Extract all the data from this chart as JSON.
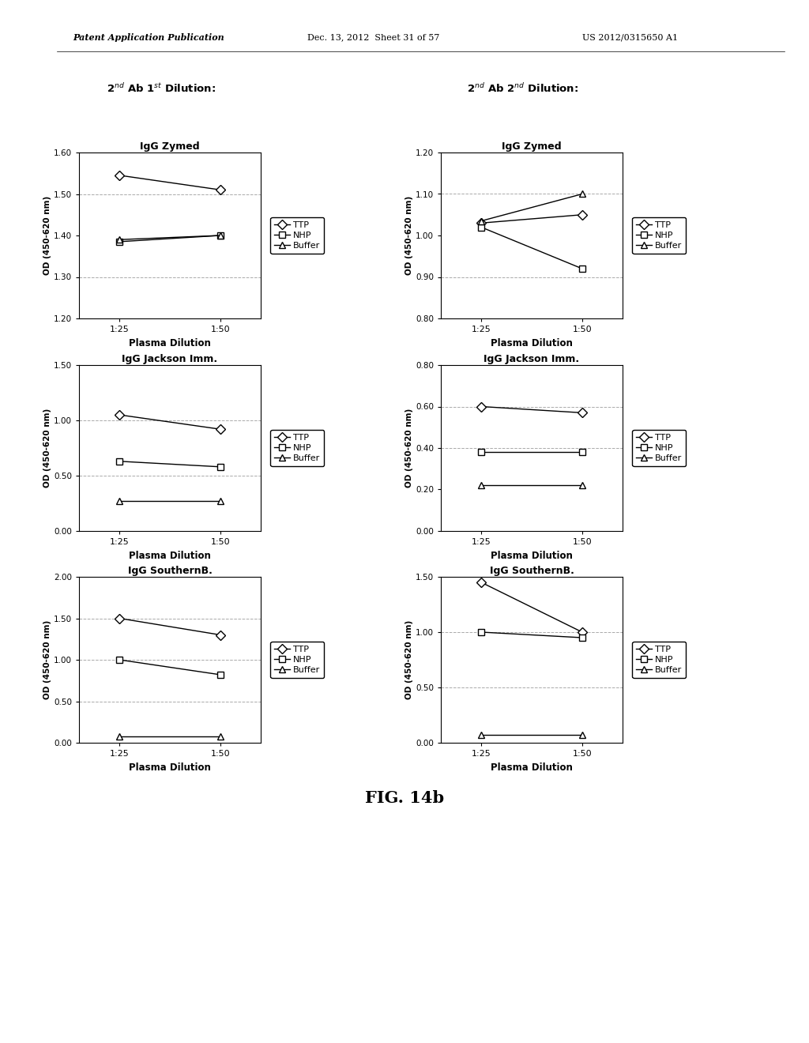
{
  "header_left": "Patent Application Publication",
  "header_mid": "Dec. 13, 2012  Sheet 31 of 57",
  "header_right": "US 2012/0315650 A1",
  "fig_label": "FIG. 14b",
  "col1_subtitle": "2$^{nd}$ Ab 1$^{st}$ Dilution:",
  "col2_subtitle": "2$^{nd}$ Ab 2$^{nd}$ Dilution:",
  "x_labels": [
    "1:25",
    "1:50"
  ],
  "x_values": [
    0,
    1
  ],
  "xlabel": "Plasma Dilution",
  "ylabel": "OD (450-620 nm)",
  "plots": [
    {
      "title": "IgG Zymed",
      "col": 0,
      "row": 0,
      "ylim": [
        1.2,
        1.6
      ],
      "yticks": [
        1.2,
        1.3,
        1.4,
        1.5,
        1.6
      ],
      "ytick_labels": [
        "1.20",
        "1.30",
        "1.40",
        "1.50",
        "1.60"
      ],
      "series": {
        "TTP": [
          1.545,
          1.51
        ],
        "NHP": [
          1.385,
          1.4
        ],
        "Buffer": [
          1.39,
          1.4
        ]
      },
      "hlines": [
        1.3,
        1.5
      ]
    },
    {
      "title": "IgG Zymed",
      "col": 1,
      "row": 0,
      "ylim": [
        0.8,
        1.2
      ],
      "yticks": [
        0.8,
        0.9,
        1.0,
        1.1,
        1.2
      ],
      "ytick_labels": [
        "0.80",
        "0.90",
        "1.00",
        "1.10",
        "1.20"
      ],
      "series": {
        "TTP": [
          1.03,
          1.05
        ],
        "NHP": [
          1.02,
          0.92
        ],
        "Buffer": [
          1.035,
          1.1
        ]
      },
      "hlines": [
        0.9,
        1.1
      ]
    },
    {
      "title": "IgG Jackson Imm.",
      "col": 0,
      "row": 1,
      "ylim": [
        0.0,
        1.5
      ],
      "yticks": [
        0.0,
        0.5,
        1.0,
        1.5
      ],
      "ytick_labels": [
        "0.00",
        "0.50",
        "1.00",
        "1.50"
      ],
      "series": {
        "TTP": [
          1.05,
          0.92
        ],
        "NHP": [
          0.63,
          0.58
        ],
        "Buffer": [
          0.27,
          0.27
        ]
      },
      "hlines": [
        0.5,
        1.0
      ]
    },
    {
      "title": "IgG Jackson Imm.",
      "col": 1,
      "row": 1,
      "ylim": [
        0.0,
        0.8
      ],
      "yticks": [
        0.0,
        0.2,
        0.4,
        0.6,
        0.8
      ],
      "ytick_labels": [
        "0.00",
        "0.20",
        "0.40",
        "0.60",
        "0.80"
      ],
      "series": {
        "TTP": [
          0.6,
          0.57
        ],
        "NHP": [
          0.38,
          0.38
        ],
        "Buffer": [
          0.22,
          0.22
        ]
      },
      "hlines": [
        0.4,
        0.6
      ]
    },
    {
      "title": "IgG SouthernB.",
      "col": 0,
      "row": 2,
      "ylim": [
        0.0,
        2.0
      ],
      "yticks": [
        0.0,
        0.5,
        1.0,
        1.5,
        2.0
      ],
      "ytick_labels": [
        "0.00",
        "0.50",
        "1.00",
        "1.50",
        "2.00"
      ],
      "series": {
        "TTP": [
          1.5,
          1.3
        ],
        "NHP": [
          1.0,
          0.82
        ],
        "Buffer": [
          0.08,
          0.08
        ]
      },
      "hlines": [
        0.5,
        1.0,
        1.5
      ]
    },
    {
      "title": "IgG SouthernB.",
      "col": 1,
      "row": 2,
      "ylim": [
        0.0,
        1.5
      ],
      "yticks": [
        0.0,
        0.5,
        1.0,
        1.5
      ],
      "ytick_labels": [
        "0.00",
        "0.50",
        "1.00",
        "1.50"
      ],
      "series": {
        "TTP": [
          1.45,
          1.0
        ],
        "NHP": [
          1.0,
          0.95
        ],
        "Buffer": [
          0.07,
          0.07
        ]
      },
      "hlines": [
        0.5,
        1.0
      ]
    }
  ],
  "marker_TTP": "D",
  "marker_NHP": "s",
  "marker_Buffer": "^",
  "line_color": "#000000",
  "bg_color": "#ffffff",
  "grid_color": "#aaaaaa"
}
